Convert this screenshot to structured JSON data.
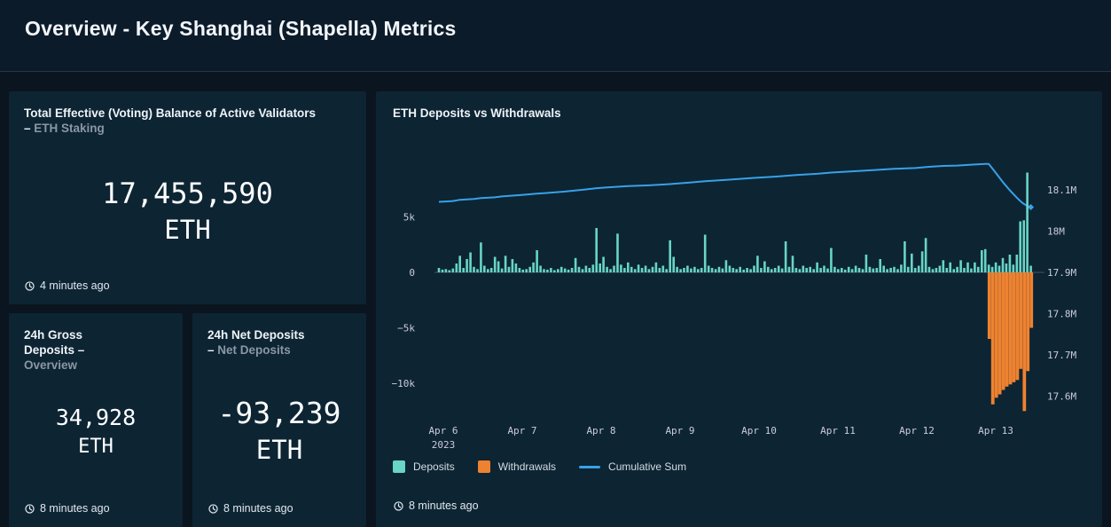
{
  "page": {
    "title": "Overview - Key Shanghai (Shapella) Metrics"
  },
  "panels": {
    "validators": {
      "title": "Total Effective (Voting) Balance of Active Validators",
      "sep": "–",
      "subtitle": "ETH Staking",
      "value": "17,455,590",
      "unit": "ETH",
      "updated": "4 minutes ago"
    },
    "gross": {
      "title": "24h Gross Deposits",
      "sep": "–",
      "subtitle": "Overview",
      "value": "34,928",
      "unit": "ETH",
      "updated": "8 minutes ago"
    },
    "net": {
      "title": "24h Net Deposits",
      "sep": "–",
      "subtitle": "Net Deposits",
      "value": "-93,239",
      "unit": "ETH",
      "updated": "8 minutes ago"
    },
    "chart": {
      "title": "ETH Deposits vs Withdrawals",
      "updated": "8 minutes ago"
    }
  },
  "chart_data": {
    "type": "bar",
    "title": "ETH Deposits vs Withdrawals",
    "subtype": "bars-with-cumulative-line",
    "grid": "zero-line-only",
    "legend": [
      {
        "label": "Deposits",
        "swatch": "box",
        "color": "#68d5c6"
      },
      {
        "label": "Withdrawals",
        "swatch": "box",
        "color": "#ee8230"
      },
      {
        "label": "Cumulative Sum",
        "swatch": "line",
        "color": "#38a1e8"
      }
    ],
    "colors": {
      "deposits": "#68d5c6",
      "withdrawals": "#ee8230",
      "cumulative": "#38a1e8",
      "axis": "#ccccdc"
    },
    "left_axis": {
      "ticks": [
        "5k",
        "0",
        "−5k",
        "−10k"
      ],
      "tick_values": [
        5000,
        0,
        -5000,
        -10000
      ],
      "unit": "ETH"
    },
    "right_axis": {
      "ticks": [
        "18.1M",
        "18M",
        "17.9M",
        "17.8M",
        "17.7M",
        "17.6M"
      ],
      "tick_values": [
        18100000,
        18000000,
        17900000,
        17800000,
        17700000,
        17600000
      ],
      "unit": "ETH"
    },
    "x_axis": {
      "ticks": [
        "Apr 6",
        "Apr 7",
        "Apr 8",
        "Apr 9",
        "Apr 10",
        "Apr 11",
        "Apr 12",
        "Apr 13"
      ],
      "year": "2023"
    },
    "deposits_eth": [
      400,
      250,
      300,
      200,
      350,
      800,
      1500,
      400,
      1200,
      1800,
      500,
      300,
      2700,
      600,
      300,
      400,
      1400,
      1000,
      350,
      1500,
      500,
      1200,
      800,
      400,
      250,
      300,
      500,
      900,
      2000,
      600,
      300,
      250,
      400,
      200,
      300,
      500,
      350,
      250,
      400,
      1300,
      500,
      300,
      600,
      400,
      700,
      4000,
      800,
      1400,
      500,
      300,
      600,
      3500,
      700,
      400,
      900,
      500,
      300,
      700,
      400,
      600,
      300,
      500,
      900,
      400,
      600,
      300,
      2900,
      1400,
      500,
      300,
      400,
      600,
      350,
      500,
      300,
      400,
      3400,
      600,
      400,
      300,
      500,
      350,
      1100,
      600,
      400,
      300,
      500,
      250,
      400,
      300,
      600,
      1500,
      400,
      1000,
      500,
      300,
      400,
      600,
      350,
      2800,
      500,
      1500,
      400,
      300,
      600,
      400,
      500,
      300,
      900,
      400,
      600,
      350,
      2200,
      500,
      300,
      400,
      250,
      500,
      300,
      600,
      400,
      300,
      1600,
      500,
      350,
      400,
      1200,
      600,
      300,
      400,
      500,
      300,
      700,
      2800,
      500,
      1700,
      400,
      600,
      1900,
      3100,
      500,
      300,
      400,
      600,
      1100,
      400,
      900,
      300,
      500,
      1100,
      400,
      900,
      350,
      900,
      500,
      2000,
      2100,
      700,
      500,
      900,
      600,
      1300,
      800,
      1600,
      700,
      1600,
      4600,
      4700,
      9000,
      600
    ],
    "withdrawals_eth": {
      "start_index": 157,
      "values": [
        -6000,
        -11900,
        -11300,
        -11000,
        -10600,
        -10300,
        -10100,
        -9900,
        -9700,
        -8700,
        -12500,
        -8900,
        -5000
      ]
    },
    "cumulative_m": [
      [
        0,
        18.071
      ],
      [
        4,
        18.073
      ],
      [
        6,
        18.076
      ],
      [
        10,
        18.078
      ],
      [
        12,
        18.08
      ],
      [
        16,
        18.082
      ],
      [
        18,
        18.084
      ],
      [
        24,
        18.088
      ],
      [
        28,
        18.091
      ],
      [
        30,
        18.092
      ],
      [
        36,
        18.096
      ],
      [
        42,
        18.101
      ],
      [
        45,
        18.104
      ],
      [
        48,
        18.106
      ],
      [
        54,
        18.109
      ],
      [
        60,
        18.111
      ],
      [
        66,
        18.114
      ],
      [
        72,
        18.118
      ],
      [
        76,
        18.121
      ],
      [
        82,
        18.124
      ],
      [
        90,
        18.129
      ],
      [
        96,
        18.132
      ],
      [
        102,
        18.136
      ],
      [
        108,
        18.139
      ],
      [
        112,
        18.142
      ],
      [
        118,
        18.145
      ],
      [
        124,
        18.148
      ],
      [
        130,
        18.151
      ],
      [
        136,
        18.153
      ],
      [
        140,
        18.156
      ],
      [
        144,
        18.158
      ],
      [
        148,
        18.159
      ],
      [
        152,
        18.161
      ],
      [
        156,
        18.163
      ],
      [
        157,
        18.163
      ],
      [
        158,
        18.152
      ],
      [
        159,
        18.141
      ],
      [
        160,
        18.13
      ],
      [
        161,
        18.119
      ],
      [
        162,
        18.109
      ],
      [
        163,
        18.099
      ],
      [
        164,
        18.09
      ],
      [
        165,
        18.081
      ],
      [
        166,
        18.073
      ],
      [
        167,
        18.066
      ],
      [
        168,
        18.061
      ],
      [
        169,
        18.058
      ]
    ]
  }
}
